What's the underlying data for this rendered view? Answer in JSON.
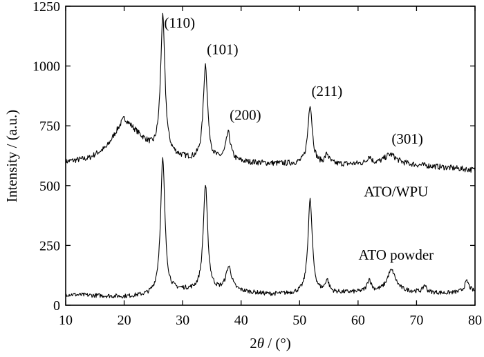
{
  "chart_data": {
    "type": "line",
    "xlabel_prefix": "2",
    "xlabel_symbol": "θ",
    "xlabel_unit": " / (°)",
    "ylabel": "Intensity / (a.u.)",
    "xlim": [
      10,
      80
    ],
    "ylim": [
      0,
      1250
    ],
    "xticks": [
      10,
      20,
      30,
      40,
      50,
      60,
      70,
      80
    ],
    "yticks": [
      0,
      250,
      500,
      750,
      1000,
      1250
    ],
    "grid": false,
    "series": [
      {
        "name": "ATO/WPU",
        "baseline": [
          [
            10,
            600
          ],
          [
            14,
            615
          ],
          [
            17,
            660
          ],
          [
            20,
            780
          ],
          [
            23,
            700
          ],
          [
            25,
            650
          ],
          [
            28,
            625
          ],
          [
            32,
            605
          ],
          [
            38,
            600
          ],
          [
            45,
            592
          ],
          [
            55,
            588
          ],
          [
            62,
            590
          ],
          [
            67,
            590
          ],
          [
            72,
            582
          ],
          [
            80,
            565
          ]
        ],
        "peaks": [
          [
            26.6,
            570,
            0.45
          ],
          [
            33.9,
            400,
            0.45
          ],
          [
            37.8,
            115,
            0.5
          ],
          [
            51.8,
            250,
            0.45
          ],
          [
            54.7,
            40,
            0.4
          ],
          [
            61.9,
            30,
            0.4
          ],
          [
            65.5,
            40,
            1.2
          ]
        ],
        "noise": 12
      },
      {
        "name": "ATO powder",
        "baseline": [
          [
            10,
            45
          ],
          [
            15,
            40
          ],
          [
            20,
            35
          ],
          [
            24,
            40
          ],
          [
            30,
            60
          ],
          [
            40,
            55
          ],
          [
            45,
            45
          ],
          [
            55,
            50
          ],
          [
            62,
            55
          ],
          [
            70,
            55
          ],
          [
            75,
            50
          ],
          [
            80,
            55
          ]
        ],
        "peaks": [
          [
            26.6,
            560,
            0.45
          ],
          [
            33.9,
            440,
            0.45
          ],
          [
            37.9,
            100,
            0.6
          ],
          [
            51.8,
            390,
            0.45
          ],
          [
            54.7,
            50,
            0.4
          ],
          [
            61.9,
            50,
            0.4
          ],
          [
            65.7,
            90,
            0.9
          ],
          [
            71.4,
            30,
            0.3
          ],
          [
            78.6,
            45,
            0.5
          ]
        ],
        "noise": 9
      }
    ],
    "annotations": [
      {
        "text": "(110)",
        "x": 26.6,
        "y": 1160
      },
      {
        "text": "(101)",
        "x": 33.9,
        "y": 1050
      },
      {
        "text": "(200)",
        "x": 37.8,
        "y": 775
      },
      {
        "text": "(211)",
        "x": 51.8,
        "y": 875
      },
      {
        "text": "(301)",
        "x": 65.5,
        "y": 675
      }
    ],
    "series_labels": [
      {
        "text": "ATO/WPU",
        "x": 66.5,
        "y": 455
      },
      {
        "text": "ATO powder",
        "x": 66.5,
        "y": 190
      }
    ]
  }
}
